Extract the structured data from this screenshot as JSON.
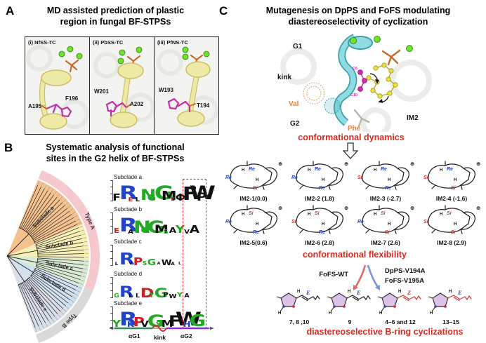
{
  "panelA": {
    "letter": "A",
    "title_line1": "MD assisted prediction of plastic",
    "title_line2": "region in fungal BF-STPSs",
    "subpanels": [
      {
        "tag": "(i) NfSS-TC",
        "res1": "A195",
        "res2": "F196"
      },
      {
        "tag": "(ii) PbSS-TC",
        "res1": "W201",
        "res2": "A202"
      },
      {
        "tag": "(iii) PfNS-TC",
        "res1": "W193",
        "res2": "T194"
      }
    ]
  },
  "panelB": {
    "letter": "B",
    "title_line1": "Systematic analysis of functional",
    "title_line2": "sites in the G2 helix of BF-STPSs",
    "tree": {
      "type_a": "Type A",
      "type_b": "Type B",
      "arc_a_color": "#f6c9cf",
      "arc_b_color": "#d9d9d9",
      "subclades": [
        {
          "label": "Subclade a",
          "color": "#f5c28f",
          "leaves": 16
        },
        {
          "label": "Subclade b",
          "color": "#f8efb5",
          "leaves": 9
        },
        {
          "label": "Subclade c",
          "color": "#d8ebd2",
          "leaves": 7
        },
        {
          "label": "Subclade d",
          "color": "#cfe0ef",
          "leaves": 7
        },
        {
          "label": "Subclade e",
          "color": "#d9dfe7",
          "leaves": 10
        }
      ]
    },
    "logos": [
      {
        "label": "Subclade a",
        "letters": [
          {
            "c": "F",
            "k": "#111111",
            "h": 0.5
          },
          {
            "c": "R",
            "k": "#2244cc",
            "h": 1.0
          },
          {
            "c": "E",
            "k": "#cc2222",
            "h": 0.3
          },
          {
            "c": "L",
            "k": "#111111",
            "h": 0.3
          },
          {
            "c": "N",
            "k": "#22aa22",
            "h": 0.8
          },
          {
            "c": "G",
            "k": "#22aa22",
            "h": 0.45
          },
          {
            "c": "G",
            "k": "#22aa22",
            "h": 1.0
          },
          {
            "c": "M",
            "k": "#111111",
            "h": 0.65
          },
          {
            "c": "E",
            "k": "#cc2222",
            "h": 0.25
          },
          {
            "c": "Φ",
            "k": "#111111",
            "h": 0.5
          },
          {
            "c": "F",
            "k": "#111111",
            "h": 0.95
          },
          {
            "c": "W",
            "k": "#111111",
            "h": 1.0
          },
          {
            "c": "P",
            "k": "#111111",
            "h": 0.6
          }
        ]
      },
      {
        "label": "Subclade b",
        "letters": [
          {
            "c": "E",
            "k": "#cc2222",
            "h": 0.35
          },
          {
            "c": "R",
            "k": "#2244cc",
            "h": 1.0
          },
          {
            "c": "A",
            "k": "#111111",
            "h": 0.3
          },
          {
            "c": "N",
            "k": "#22aa22",
            "h": 0.9
          },
          {
            "c": "G",
            "k": "#22aa22",
            "h": 0.4
          },
          {
            "c": "G",
            "k": "#22aa22",
            "h": 0.9
          },
          {
            "c": "M",
            "k": "#111111",
            "h": 0.6
          },
          {
            "c": "S",
            "k": "#22aa22",
            "h": 0.3
          },
          {
            "c": "A",
            "k": "#111111",
            "h": 0.4
          },
          {
            "c": "Y",
            "k": "#22aa22",
            "h": 0.55
          },
          {
            "c": "V",
            "k": "#111111",
            "h": 0.3
          },
          {
            "c": "A",
            "k": "#111111",
            "h": 0.55
          }
        ]
      },
      {
        "label": "Subclade c",
        "letters": [
          {
            "c": "L",
            "k": "#111111",
            "h": 0.22
          },
          {
            "c": "R",
            "k": "#2244cc",
            "h": 0.85
          },
          {
            "c": "V",
            "k": "#111111",
            "h": 0.18
          },
          {
            "c": "P",
            "k": "#cc2222",
            "h": 0.55
          },
          {
            "c": "S",
            "k": "#22aa22",
            "h": 0.28
          },
          {
            "c": "G",
            "k": "#22aa22",
            "h": 0.45
          },
          {
            "c": "A",
            "k": "#111111",
            "h": 0.18
          },
          {
            "c": "W",
            "k": "#111111",
            "h": 0.4
          },
          {
            "c": "A",
            "k": "#111111",
            "h": 0.22
          },
          {
            "c": "L",
            "k": "#111111",
            "h": 0.18
          }
        ]
      },
      {
        "label": "Subclade d",
        "letters": [
          {
            "c": "G",
            "k": "#22aa22",
            "h": 0.28
          },
          {
            "c": "R",
            "k": "#2244cc",
            "h": 0.8
          },
          {
            "c": "L",
            "k": "#111111",
            "h": 0.28
          },
          {
            "c": "L",
            "k": "#111111",
            "h": 0.28
          },
          {
            "c": "D",
            "k": "#cc2222",
            "h": 0.7
          },
          {
            "c": "T",
            "k": "#22aa22",
            "h": 0.28
          },
          {
            "c": "G",
            "k": "#22aa22",
            "h": 0.7
          },
          {
            "c": "P",
            "k": "#111111",
            "h": 0.32
          },
          {
            "c": "W",
            "k": "#111111",
            "h": 0.3
          },
          {
            "c": "Y",
            "k": "#22aa22",
            "h": 0.34
          },
          {
            "c": "A",
            "k": "#111111",
            "h": 0.28
          }
        ]
      },
      {
        "label": "Subclade e",
        "letters": [
          {
            "c": "Y",
            "k": "#22aa22",
            "h": 0.5
          },
          {
            "c": "R",
            "k": "#2244cc",
            "h": 1.0
          },
          {
            "c": "K",
            "k": "#2244cc",
            "h": 0.4
          },
          {
            "c": "P",
            "k": "#cc2222",
            "h": 0.65
          },
          {
            "c": "V",
            "k": "#111111",
            "h": 0.45
          },
          {
            "c": "G",
            "k": "#22aa22",
            "h": 0.9
          },
          {
            "c": "Y",
            "k": "#22aa22",
            "h": 0.35
          },
          {
            "c": "M",
            "k": "#111111",
            "h": 0.5
          },
          {
            "c": "F",
            "k": "#111111",
            "h": 0.8
          },
          {
            "c": "W",
            "k": "#111111",
            "h": 1.0
          },
          {
            "c": "H",
            "k": "#2244cc",
            "h": 0.4
          },
          {
            "c": "G",
            "k": "#22aa22",
            "h": 0.85
          }
        ]
      }
    ],
    "axis": {
      "g1": "αG1",
      "kink": "kink",
      "g2": "αG2"
    }
  },
  "panelC": {
    "letter": "C",
    "title_line1": "Mutagenesis on  DpPS and FoFS modulating",
    "title_line2": "diastereoselectivity of cyclization",
    "structure": {
      "g1": "G1",
      "kink": "kink",
      "val": "Val",
      "g2": "G2",
      "phe": "Phe",
      "im2": "IM2",
      "c6": "C6",
      "c10": "C10"
    },
    "dynamics_caption": "conformational dynamics",
    "glyphs": {
      "cation": "⊕",
      "h": "H"
    },
    "conformers": [
      {
        "label": "IM2-1(0.0)",
        "marks": [
          {
            "text": "Re",
            "color": "#2244cc"
          },
          {
            "text": "Re",
            "color": "#2244cc"
          },
          {
            "text": "Si",
            "color": "#d43030"
          }
        ]
      },
      {
        "label": "IM2-2 (1.8)",
        "marks": [
          {
            "text": "Re",
            "color": "#2244cc"
          },
          {
            "text": "Re",
            "color": "#2244cc"
          },
          {
            "text": "Re",
            "color": "#2244cc"
          }
        ]
      },
      {
        "label": "IM2-3 (-2.7)",
        "marks": [
          {
            "text": "Re",
            "color": "#2244cc"
          },
          {
            "text": "Si",
            "color": "#d43030"
          },
          {
            "text": "Re",
            "color": "#2244cc"
          }
        ]
      },
      {
        "label": "IM2-4 (-1.6)",
        "marks": [
          {
            "text": "Re",
            "color": "#2244cc"
          },
          {
            "text": "Si",
            "color": "#d43030"
          },
          {
            "text": "Si",
            "color": "#d43030"
          }
        ]
      },
      {
        "label": "IM2-5(0.6)",
        "marks": [
          {
            "text": "Si",
            "color": "#d43030"
          },
          {
            "text": "Re",
            "color": "#2244cc"
          },
          {
            "text": "Re",
            "color": "#2244cc"
          }
        ]
      },
      {
        "label": "IM2-6 (2.8)",
        "marks": [
          {
            "text": "Si",
            "color": "#d43030"
          },
          {
            "text": "Si",
            "color": "#d43030"
          },
          {
            "text": "Re",
            "color": "#2244cc"
          }
        ]
      },
      {
        "label": "IM2-7 (2.6)",
        "marks": [
          {
            "text": "Si",
            "color": "#d43030"
          },
          {
            "text": "Re",
            "color": "#2244cc"
          },
          {
            "text": "Si",
            "color": "#d43030"
          }
        ]
      },
      {
        "label": "IM2-8 (2.9)",
        "marks": [
          {
            "text": "Si",
            "color": "#d43030"
          },
          {
            "text": "Si",
            "color": "#d43030"
          },
          {
            "text": "Si",
            "color": "#d43030"
          }
        ]
      }
    ],
    "flexibility_caption": "conformational flexibility",
    "reaction": {
      "wt_label": "FoFS-WT",
      "mut_label1": "DpPS-V194A",
      "mut_label2": "FoFS-V195A"
    },
    "products": [
      {
        "caption": "7, 8 ,10",
        "stereo": "E",
        "stereo_color": "#2244cc",
        "chain_color": "#1a1a1a"
      },
      {
        "caption": "9",
        "stereo": "E",
        "stereo_color": "#2244cc",
        "chain_color": "#1a1a1a"
      },
      {
        "caption": "4–6 and 12",
        "stereo": "Z",
        "stereo_color": "#d43030",
        "chain_color": "#d43030"
      },
      {
        "caption": "13–15",
        "stereo": "E",
        "stereo_color": "#2244cc",
        "chain_color": "#d43030"
      }
    ],
    "bring_caption": "diastereoselective B-ring cyclizations"
  }
}
